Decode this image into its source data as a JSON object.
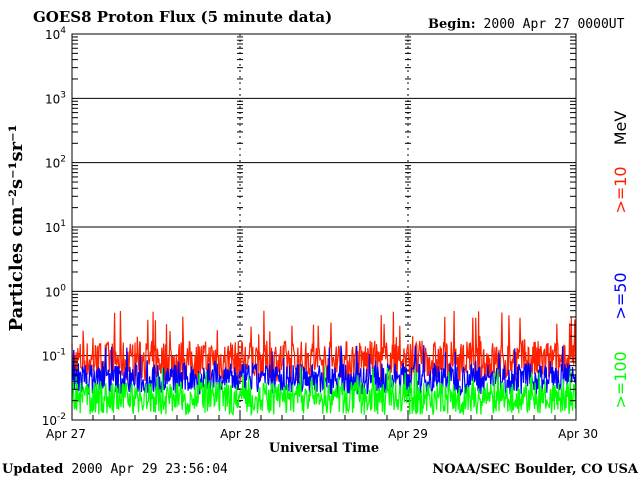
{
  "chart_data": {
    "type": "line",
    "title": "GOES8 Proton Flux (5 minute data)",
    "begin_label": "Begin:",
    "begin_value": "2000 Apr 27 0000UT",
    "xlabel": "Universal Time",
    "ylabel": "Particles cm⁻²s⁻¹sr⁻¹",
    "y_scale": "log",
    "ylim": [
      0.01,
      10000
    ],
    "y_ticks": [
      {
        "base": "10",
        "exp": "4"
      },
      {
        "base": "10",
        "exp": "3"
      },
      {
        "base": "10",
        "exp": "2"
      },
      {
        "base": "10",
        "exp": "1"
      },
      {
        "base": "10",
        "exp": "0"
      },
      {
        "base": "10",
        "exp": "-1"
      },
      {
        "base": "10",
        "exp": "-2"
      }
    ],
    "x_ticks": [
      "Apr 27",
      "Apr 28",
      "Apr 29",
      "Apr 30"
    ],
    "xlim_days": [
      0,
      3
    ],
    "grid": true,
    "legend_unit": "MeV",
    "series": [
      {
        "name": ">=10",
        "color": "#ff2000",
        "typical": 0.1,
        "min": 0.04,
        "max": 0.5
      },
      {
        "name": ">=50",
        "color": "#0000ff",
        "typical": 0.05,
        "min": 0.025,
        "max": 0.15
      },
      {
        "name": ">=100",
        "color": "#00ff00",
        "typical": 0.025,
        "min": 0.012,
        "max": 0.07
      }
    ]
  },
  "footer": {
    "updated_label": "Updated",
    "updated_value": "2000 Apr 29 23:56:04",
    "source": "NOAA/SEC Boulder, CO USA"
  }
}
